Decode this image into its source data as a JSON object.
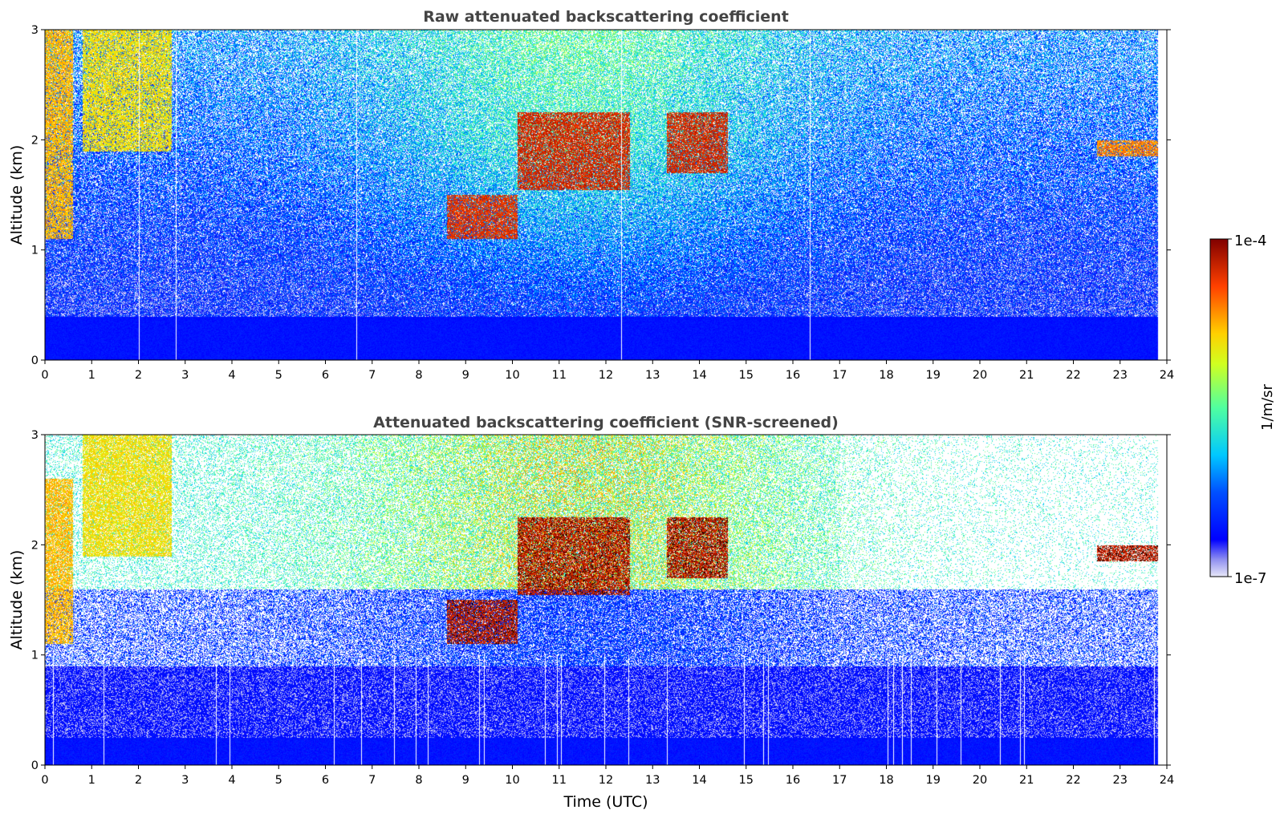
{
  "chart_data": [
    {
      "type": "heatmap",
      "title": "Raw attenuated backscattering coefficient",
      "xlabel": "",
      "ylabel": "Altitude (km)",
      "xlim": [
        0,
        24
      ],
      "ylim": [
        0,
        3
      ],
      "x_ticks": [
        "0",
        "1",
        "2",
        "3",
        "4",
        "5",
        "6",
        "7",
        "8",
        "9",
        "10",
        "11",
        "12",
        "13",
        "14",
        "15",
        "16",
        "17",
        "18",
        "19",
        "20",
        "21",
        "22",
        "23",
        "24"
      ],
      "y_ticks": [
        "0",
        "1",
        "2",
        "3"
      ],
      "data_end_time": 23.8,
      "features": [
        {
          "t_start": 0.0,
          "t_end": 0.6,
          "alt_low": 1.1,
          "alt_high": 3.0,
          "level": 0.8
        },
        {
          "t_start": 0.8,
          "t_end": 2.7,
          "alt_low": 1.9,
          "alt_high": 3.0,
          "level": 0.75
        },
        {
          "t_start": 8.6,
          "t_end": 10.1,
          "alt_low": 1.1,
          "alt_high": 1.5,
          "level": 0.95
        },
        {
          "t_start": 10.1,
          "t_end": 12.5,
          "alt_low": 1.55,
          "alt_high": 2.25,
          "level": 0.97
        },
        {
          "t_start": 13.3,
          "t_end": 14.6,
          "alt_low": 1.7,
          "alt_high": 2.25,
          "level": 0.97
        },
        {
          "t_start": 22.5,
          "t_end": 23.8,
          "alt_low": 1.85,
          "alt_high": 2.0,
          "level": 0.85
        }
      ]
    },
    {
      "type": "heatmap",
      "title": "Attenuated backscattering coefficient (SNR-screened)",
      "xlabel": "Time (UTC)",
      "ylabel": "Altitude (km)",
      "xlim": [
        0,
        24
      ],
      "ylim": [
        0,
        3
      ],
      "x_ticks": [
        "0",
        "1",
        "2",
        "3",
        "4",
        "5",
        "6",
        "7",
        "8",
        "9",
        "10",
        "11",
        "12",
        "13",
        "14",
        "15",
        "16",
        "17",
        "18",
        "19",
        "20",
        "21",
        "22",
        "23",
        "24"
      ],
      "y_ticks": [
        "0",
        "1",
        "2",
        "3"
      ],
      "data_end_time": 23.8,
      "features": [
        {
          "t_start": 0.0,
          "t_end": 0.6,
          "alt_low": 1.1,
          "alt_high": 2.6,
          "level": 0.8
        },
        {
          "t_start": 0.8,
          "t_end": 2.7,
          "alt_low": 1.9,
          "alt_high": 3.0,
          "level": 0.75
        },
        {
          "t_start": 8.6,
          "t_end": 10.1,
          "alt_low": 1.1,
          "alt_high": 1.5,
          "level": 1.0
        },
        {
          "t_start": 10.1,
          "t_end": 12.5,
          "alt_low": 1.55,
          "alt_high": 2.25,
          "level": 1.0
        },
        {
          "t_start": 13.3,
          "t_end": 14.6,
          "alt_low": 1.7,
          "alt_high": 2.25,
          "level": 1.0
        },
        {
          "t_start": 22.5,
          "t_end": 23.8,
          "alt_low": 1.85,
          "alt_high": 2.0,
          "level": 1.0
        }
      ]
    }
  ],
  "colorbar": {
    "label": "1/m/sr",
    "max_label": "1e-4",
    "min_label": "1e-7",
    "colormap": "jet",
    "low_color": "#e8e8f8",
    "over_color": "#000000"
  }
}
